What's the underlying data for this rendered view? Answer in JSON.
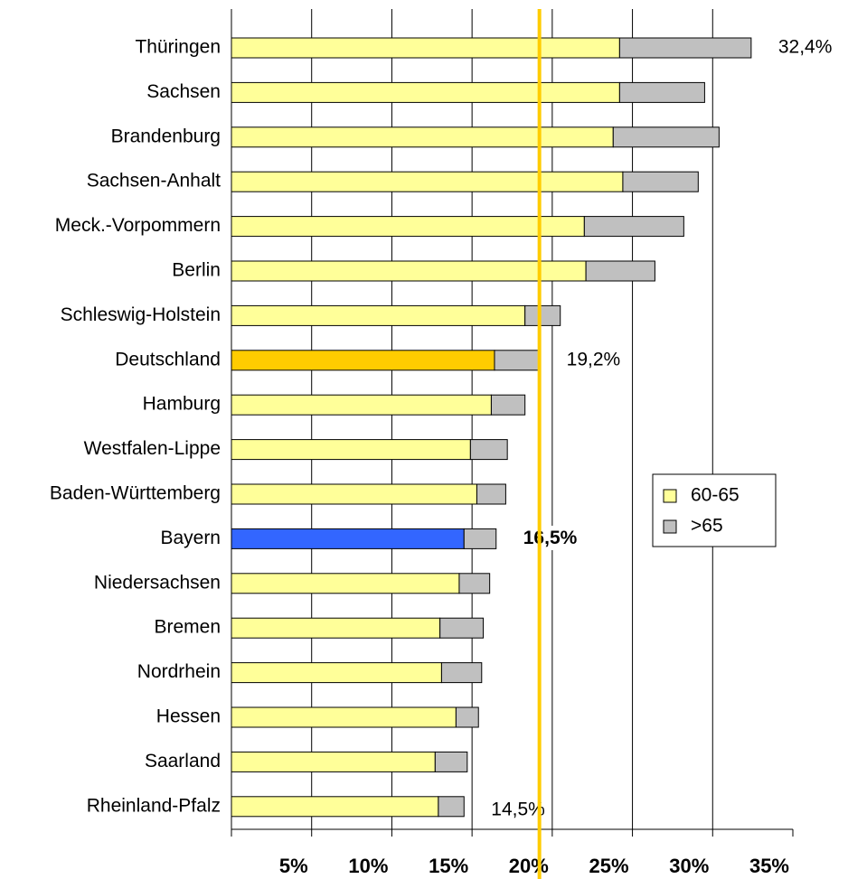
{
  "chart_data": {
    "type": "stacked_barh",
    "categories": [
      "Thüringen",
      "Sachsen",
      "Brandenburg",
      "Sachsen-Anhalt",
      "Meck.-Vorpommern",
      "Berlin",
      "Schleswig-Holstein",
      "Deutschland",
      "Hamburg",
      "Westfalen-Lippe",
      "Baden-Württemberg",
      "Bayern",
      "Niedersachsen",
      "Bremen",
      "Nordrhein",
      "Hessen",
      "Saarland",
      "Rheinland-Pfalz"
    ],
    "series": [
      {
        "name": "60-65",
        "color": "#ffff99",
        "colors": [
          "#ffff99",
          "#ffff99",
          "#ffff99",
          "#ffff99",
          "#ffff99",
          "#ffff99",
          "#ffff99",
          "#ffcc00",
          "#ffff99",
          "#ffff99",
          "#ffff99",
          "#3366ff",
          "#ffff99",
          "#ffff99",
          "#ffff99",
          "#ffff99",
          "#ffff99",
          "#ffff99"
        ],
        "values": [
          24.2,
          24.2,
          23.8,
          24.4,
          22.0,
          22.1,
          18.3,
          16.4,
          16.2,
          14.9,
          15.3,
          14.5,
          14.2,
          13.0,
          13.1,
          14.0,
          12.7,
          12.9
        ]
      },
      {
        "name": ">65",
        "color": "#c0c0c0",
        "values": [
          8.2,
          5.3,
          6.6,
          4.7,
          6.2,
          4.3,
          2.2,
          2.8,
          2.1,
          2.3,
          1.8,
          2.0,
          1.9,
          2.7,
          2.5,
          1.4,
          2.0,
          1.6
        ]
      }
    ],
    "xlim": [
      0,
      35
    ],
    "xticks": [
      {
        "value": 5,
        "label": "5%"
      },
      {
        "value": 10,
        "label": "10%"
      },
      {
        "value": 15,
        "label": "15%"
      },
      {
        "value": 20,
        "label": "20%"
      },
      {
        "value": 25,
        "label": "25%"
      },
      {
        "value": 30,
        "label": "30%"
      },
      {
        "value": 35,
        "label": "35%"
      }
    ],
    "grid": true,
    "reference_line": {
      "value": 19.2,
      "color": "#ffcc00"
    },
    "annotations": [
      {
        "text": "32,4%",
        "category": "Thüringen",
        "bold": false
      },
      {
        "text": "19,2%",
        "category": "Deutschland",
        "bold": false
      },
      {
        "text": "16,5%",
        "category": "Bayern",
        "bold": true
      },
      {
        "text": "14,5%",
        "category": "Rheinland-Pfalz",
        "bold": false
      }
    ],
    "legend": "right"
  }
}
